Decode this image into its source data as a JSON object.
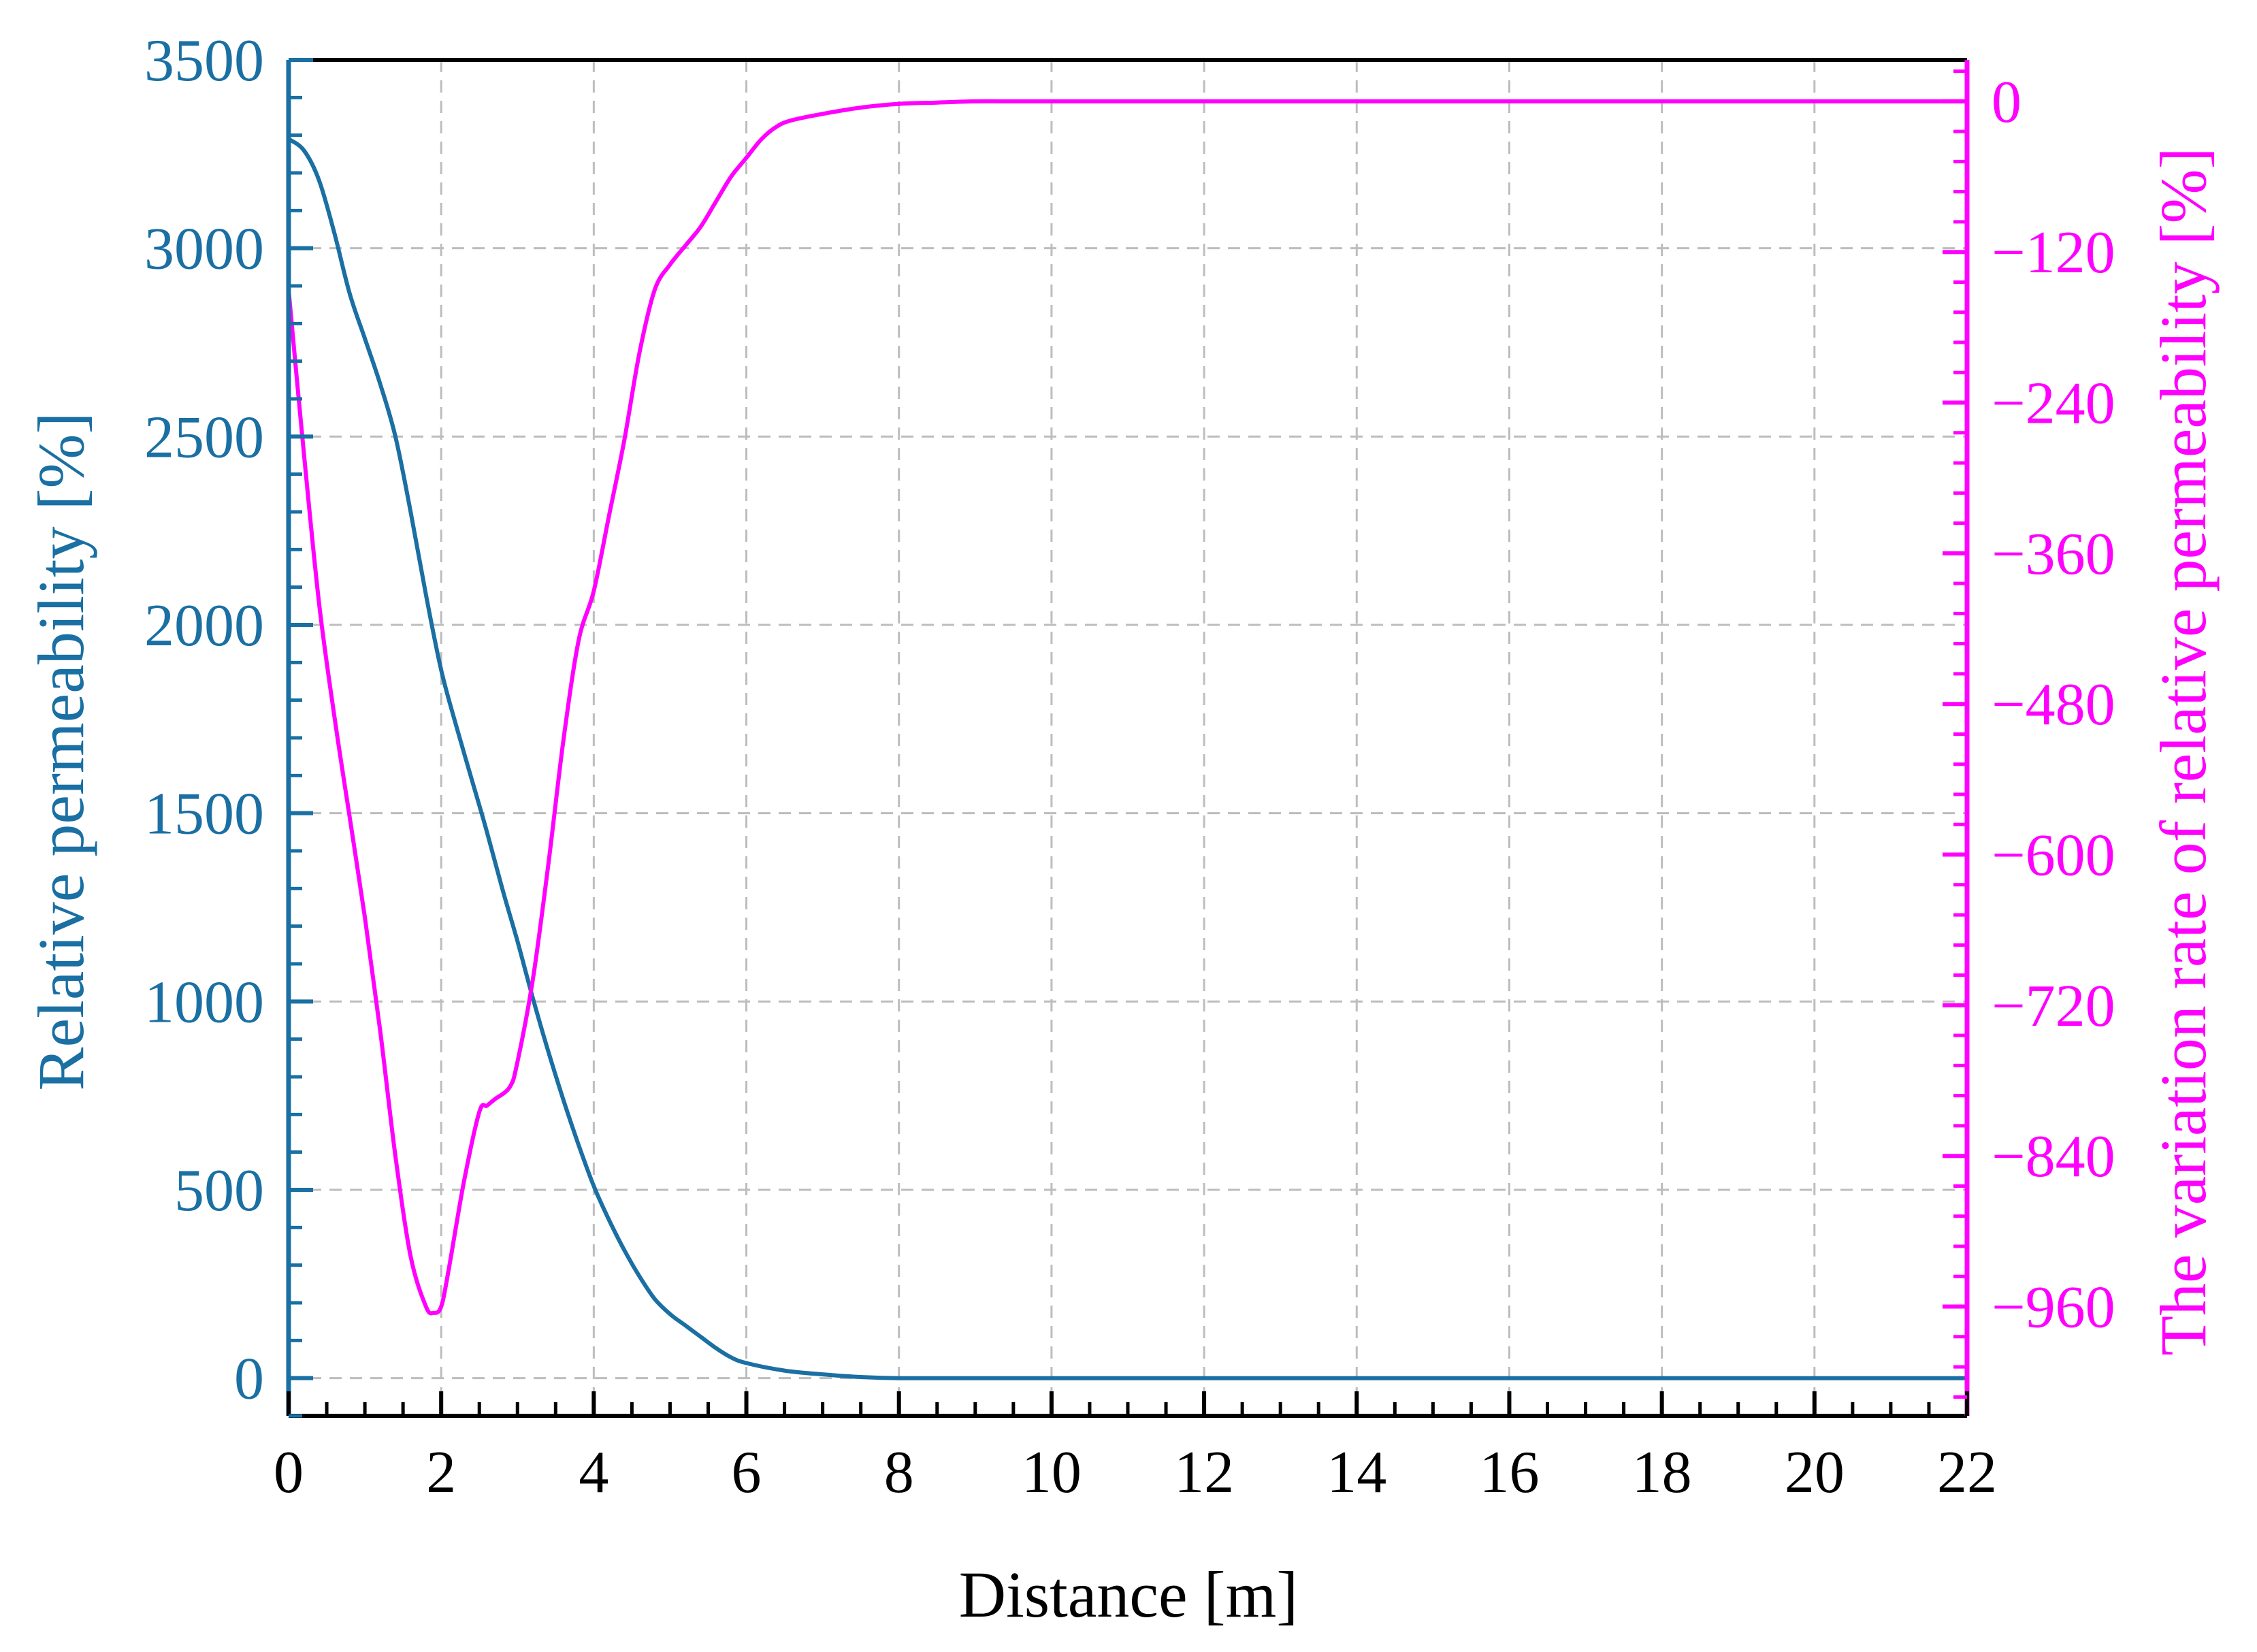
{
  "chart_data": {
    "type": "line",
    "xlabel": "Distance [m]",
    "ylabel_left": "Relative permeability [%]",
    "ylabel_right": "The variation rate of relative permeability [%]",
    "xlim": [
      0,
      22
    ],
    "ylim_left": [
      -100,
      3500
    ],
    "ylim_right": [
      -1047,
      33
    ],
    "x_ticks": [
      0,
      2,
      4,
      6,
      8,
      10,
      12,
      14,
      16,
      18,
      20,
      22
    ],
    "y_left_ticks": [
      0,
      500,
      1000,
      1500,
      2000,
      2500,
      3000,
      3500
    ],
    "y_right_ticks": [
      0,
      -120,
      -240,
      -360,
      -480,
      -600,
      -720,
      -840,
      -960
    ],
    "x_tick_labels": [
      "0",
      "2",
      "4",
      "6",
      "8",
      "10",
      "12",
      "14",
      "16",
      "18",
      "20",
      "22"
    ],
    "y_left_tick_labels": [
      "0",
      "500",
      "1000",
      "1500",
      "2000",
      "2500",
      "3000",
      "3500"
    ],
    "y_right_tick_labels": [
      "0",
      "−120",
      "−240",
      "−360",
      "−480",
      "−600",
      "−720",
      "−840",
      "−960"
    ],
    "grid": true,
    "colors": {
      "left_axis": "#1a6fa3",
      "right_axis": "#ff00ff",
      "grid": "#bdbdbd",
      "frame": "#000000"
    },
    "series": [
      {
        "axis": "left",
        "color": "#1a6fa3",
        "x": [
          0,
          0.2,
          0.4,
          0.6,
          0.8,
          1.0,
          1.2,
          1.4,
          1.6,
          1.8,
          2.0,
          2.2,
          2.4,
          2.6,
          2.8,
          3.0,
          3.2,
          3.4,
          3.6,
          3.8,
          4.0,
          4.2,
          4.4,
          4.6,
          4.8,
          5.0,
          5.2,
          5.4,
          5.6,
          5.8,
          6.0,
          6.5,
          7.0,
          7.5,
          8.0,
          9.0,
          10,
          12,
          14,
          16,
          18,
          20,
          22
        ],
        "y": [
          3290,
          3260,
          3180,
          3040,
          2880,
          2760,
          2640,
          2500,
          2300,
          2080,
          1880,
          1730,
          1590,
          1450,
          1300,
          1160,
          1010,
          870,
          740,
          620,
          510,
          420,
          340,
          270,
          210,
          170,
          140,
          110,
          80,
          55,
          40,
          20,
          10,
          3,
          0,
          0,
          0,
          0,
          0,
          0,
          0,
          0,
          0
        ]
      },
      {
        "axis": "right",
        "color": "#ff00ff",
        "x": [
          0,
          0.2,
          0.4,
          0.6,
          0.8,
          1.0,
          1.2,
          1.4,
          1.6,
          1.8,
          1.9,
          2.0,
          2.1,
          2.3,
          2.5,
          2.6,
          2.7,
          2.9,
          3.0,
          3.2,
          3.4,
          3.6,
          3.8,
          4.0,
          4.2,
          4.4,
          4.6,
          4.8,
          5.0,
          5.2,
          5.4,
          5.6,
          5.8,
          6.0,
          6.2,
          6.4,
          6.6,
          7.0,
          7.5,
          8.0,
          8.5,
          9.0,
          9.5,
          10,
          12,
          14,
          16,
          18,
          20,
          22
        ],
        "y": [
          -150,
          -280,
          -400,
          -490,
          -570,
          -650,
          -740,
          -840,
          -920,
          -960,
          -965,
          -960,
          -930,
          -860,
          -805,
          -800,
          -795,
          -785,
          -765,
          -700,
          -610,
          -510,
          -430,
          -390,
          -330,
          -270,
          -200,
          -150,
          -130,
          -115,
          -100,
          -80,
          -60,
          -45,
          -30,
          -20,
          -15,
          -10,
          -5,
          -2,
          -1,
          0,
          0,
          0,
          0,
          0,
          0,
          0,
          0,
          0
        ]
      }
    ]
  }
}
